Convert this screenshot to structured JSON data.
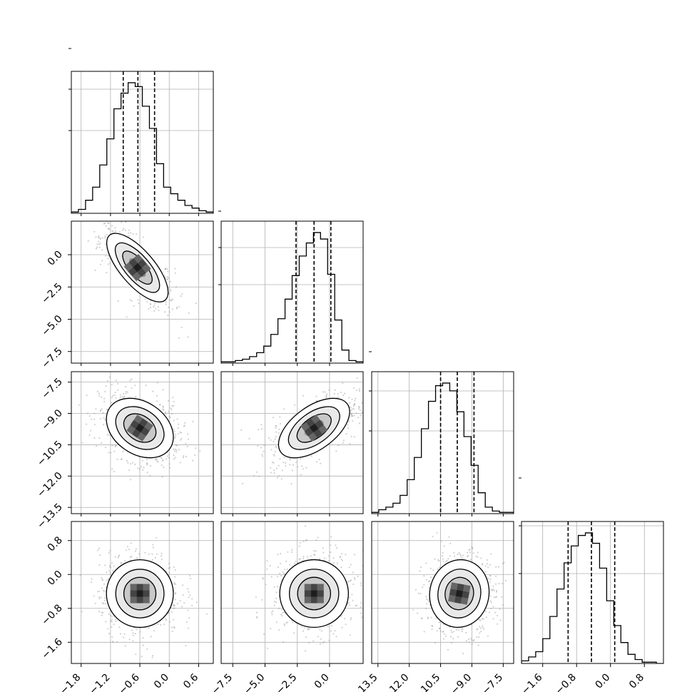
{
  "chart_data": {
    "type": "corner",
    "parameters": [
      {
        "ticks": [
          -1.8,
          -1.2,
          -0.6,
          0.0,
          0.6
        ],
        "tick_labels": [
          "−1.8",
          "−1.2",
          "−0.6",
          "0.0",
          "0.6"
        ],
        "quantiles": [
          -0.94,
          -0.64,
          -0.3
        ]
      },
      {
        "ticks": [
          0.0,
          -2.5,
          -5.0,
          -7.5
        ],
        "tick_labels": [
          "0.0",
          "−2.5",
          "−5.0",
          "−7.5"
        ],
        "quantiles": [
          -2.6,
          -1.2,
          0.1
        ]
      },
      {
        "ticks": [
          -7.5,
          -9.0,
          -10.5,
          -12.0,
          -13.5
        ],
        "tick_labels": [
          "−7.5",
          "−9.0",
          "−10.5",
          "−12.0",
          "−13.5"
        ],
        "quantiles": [
          -10.5,
          -9.7,
          -8.9
        ]
      },
      {
        "ticks": [
          0.8,
          0.0,
          -0.8,
          -1.6
        ],
        "tick_labels": [
          "0.8",
          "0.0",
          "−0.8",
          "−1.6"
        ],
        "quantiles": [
          -1.0,
          -0.45,
          0.1
        ]
      }
    ],
    "histograms": [
      [
        0.01,
        0.03,
        0.1,
        0.2,
        0.37,
        0.57,
        0.8,
        0.92,
        1.0,
        0.97,
        0.82,
        0.65,
        0.38,
        0.2,
        0.15,
        0.1,
        0.06,
        0.04,
        0.02,
        0.01
      ],
      [
        0.01,
        0.01,
        0.02,
        0.03,
        0.05,
        0.08,
        0.13,
        0.22,
        0.34,
        0.49,
        0.67,
        0.82,
        0.92,
        1.0,
        0.95,
        0.68,
        0.33,
        0.1,
        0.02,
        0.01
      ],
      [
        0.01,
        0.03,
        0.05,
        0.08,
        0.14,
        0.26,
        0.43,
        0.65,
        0.86,
        0.98,
        1.0,
        0.94,
        0.78,
        0.59,
        0.37,
        0.16,
        0.05,
        0.02,
        0.01,
        0.01
      ],
      [
        0.02,
        0.05,
        0.09,
        0.19,
        0.36,
        0.57,
        0.77,
        0.9,
        0.98,
        1.0,
        0.92,
        0.73,
        0.48,
        0.29,
        0.16,
        0.07,
        0.03,
        0.01,
        0.01,
        0.0
      ]
    ],
    "pair_correlations": [
      {
        "row": 1,
        "col": 0,
        "correlation": "negative"
      },
      {
        "row": 2,
        "col": 0,
        "correlation": "weak"
      },
      {
        "row": 2,
        "col": 1,
        "correlation": "positive"
      },
      {
        "row": 3,
        "col": 0,
        "correlation": "none"
      },
      {
        "row": 3,
        "col": 1,
        "correlation": "none"
      },
      {
        "row": 3,
        "col": 2,
        "correlation": "none"
      }
    ],
    "grid": true,
    "colors": {
      "hist": "#000000",
      "scatter": "#9a9a9a",
      "grid": "#b0b0b0",
      "axes": "#000000"
    }
  }
}
